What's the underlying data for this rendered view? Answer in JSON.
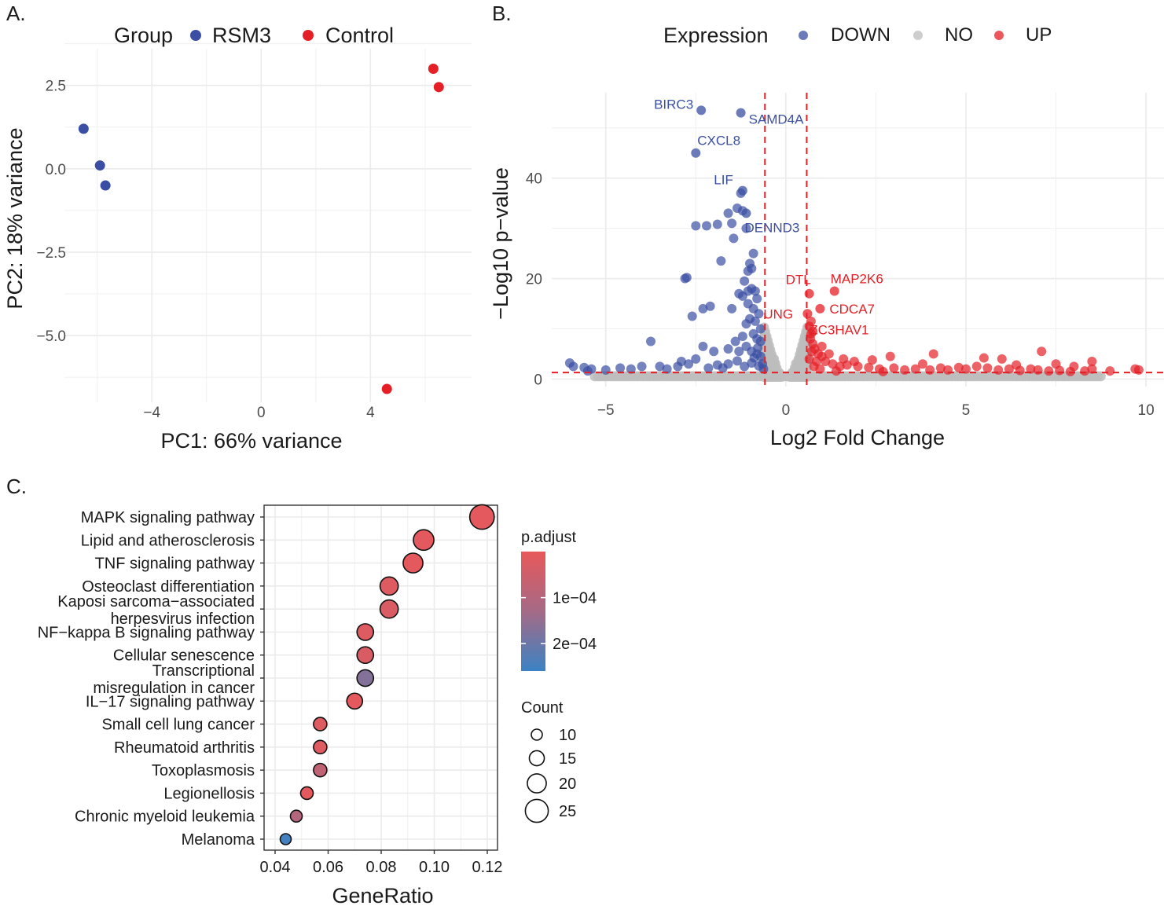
{
  "panels": {
    "A": {
      "letter": "A."
    },
    "B": {
      "letter": "B."
    },
    "C": {
      "letter": "C."
    }
  },
  "chart_data": [
    {
      "id": "pca",
      "type": "scatter",
      "xlabel": "PC1: 66% variance",
      "ylabel": "PC2: 18% variance",
      "xlim": [
        -7.2,
        7.7
      ],
      "ylim": [
        -7.0,
        3.6
      ],
      "x_ticks": [
        -4,
        0,
        4
      ],
      "x_tick_labels": [
        "−4",
        "0",
        "4"
      ],
      "y_ticks": [
        2.5,
        0.0,
        -2.5,
        -5.0
      ],
      "y_tick_labels": [
        "2.5",
        "0.0",
        "−2.5",
        "−5.0"
      ],
      "grid": true,
      "legend": {
        "title": "Group",
        "position": "top"
      },
      "series": [
        {
          "name": "RSM3",
          "color": "#3a4fa3",
          "points": [
            {
              "x": -6.5,
              "y": 1.2
            },
            {
              "x": -5.9,
              "y": 0.1
            },
            {
              "x": -5.7,
              "y": -0.5
            }
          ]
        },
        {
          "name": "Control",
          "color": "#e41f26",
          "points": [
            {
              "x": 6.3,
              "y": 3.0
            },
            {
              "x": 6.5,
              "y": 2.45
            },
            {
              "x": 4.6,
              "y": -6.6
            }
          ]
        }
      ]
    },
    {
      "id": "volcano",
      "type": "scatter",
      "xlabel": "Log2 Fold Change",
      "ylabel": "−Log10 p−value",
      "xlim": [
        -6.5,
        10.5
      ],
      "ylim": [
        -1.5,
        57
      ],
      "x_ticks": [
        -5,
        0,
        5,
        10
      ],
      "x_tick_labels": [
        "−5",
        "0",
        "5",
        "10"
      ],
      "y_ticks": [
        0,
        20,
        40
      ],
      "y_tick_labels": [
        "0",
        "20",
        "40"
      ],
      "grid": true,
      "thresholds": {
        "log2fc": [
          -0.58,
          0.58
        ],
        "neg_log10_p": 1.3,
        "color": "#e41f26"
      },
      "legend": {
        "title": "Expression",
        "position": "top",
        "items": [
          {
            "name": "DOWN",
            "color": "#3a4fa3"
          },
          {
            "name": "NO",
            "color": "#bdbdbd"
          },
          {
            "name": "UP",
            "color": "#e41f26"
          }
        ]
      },
      "labeled_genes": [
        {
          "gene": "BIRC3",
          "x": -2.35,
          "y": 53.5,
          "group": "DOWN"
        },
        {
          "gene": "SAMD4A",
          "x": -1.25,
          "y": 53.0,
          "group": "DOWN"
        },
        {
          "gene": "CXCL8",
          "x": -2.5,
          "y": 45.0,
          "group": "DOWN"
        },
        {
          "gene": "LIF",
          "x": -1.2,
          "y": 37.5,
          "group": "DOWN"
        },
        {
          "gene": "DENND3",
          "x": -1.1,
          "y": 33.0,
          "group": "DOWN"
        },
        {
          "gene": "DTL",
          "x": 0.65,
          "y": 17.0,
          "group": "UP"
        },
        {
          "gene": "MAP2K6",
          "x": 1.35,
          "y": 17.5,
          "group": "UP"
        },
        {
          "gene": "UNG",
          "x": 0.6,
          "y": 13.0,
          "group": "UP"
        },
        {
          "gene": "CDCA7",
          "x": 0.95,
          "y": 14.0,
          "group": "UP"
        },
        {
          "gene": "ZC3HAV1",
          "x": 0.75,
          "y": 9.5,
          "group": "UP"
        }
      ],
      "down_points": [
        {
          "x": -2.6,
          "y": 12.5
        },
        {
          "x": -2.3,
          "y": 14.0
        },
        {
          "x": -2.1,
          "y": 14.5
        },
        {
          "x": -1.5,
          "y": 14.0
        },
        {
          "x": -2.8,
          "y": 20.0
        },
        {
          "x": -2.75,
          "y": 20.2
        },
        {
          "x": -2.5,
          "y": 30.5
        },
        {
          "x": -2.2,
          "y": 30.5
        },
        {
          "x": -1.9,
          "y": 30.8
        },
        {
          "x": -1.6,
          "y": 33.0
        },
        {
          "x": -1.5,
          "y": 31.0
        },
        {
          "x": -1.45,
          "y": 28.0
        },
        {
          "x": -1.35,
          "y": 34.0
        },
        {
          "x": -1.2,
          "y": 33.5
        },
        {
          "x": -1.1,
          "y": 30.0
        },
        {
          "x": -1.25,
          "y": 37.0
        },
        {
          "x": -1.8,
          "y": 23.5
        },
        {
          "x": -1.05,
          "y": 21.5
        },
        {
          "x": -0.95,
          "y": 22.0
        },
        {
          "x": -0.9,
          "y": 25.0
        },
        {
          "x": -1.0,
          "y": 23.0
        },
        {
          "x": -1.15,
          "y": 19.5
        },
        {
          "x": -1.3,
          "y": 17.0
        },
        {
          "x": -1.2,
          "y": 16.5
        },
        {
          "x": -1.05,
          "y": 17.5
        },
        {
          "x": -0.95,
          "y": 18.0
        },
        {
          "x": -0.85,
          "y": 17.5
        },
        {
          "x": -0.8,
          "y": 16.0
        },
        {
          "x": -0.9,
          "y": 14.0
        },
        {
          "x": -0.75,
          "y": 13.0
        },
        {
          "x": -0.85,
          "y": 11.5
        },
        {
          "x": -1.0,
          "y": 12.0
        },
        {
          "x": -1.1,
          "y": 11.0
        },
        {
          "x": -0.9,
          "y": 9.0
        },
        {
          "x": -0.8,
          "y": 8.0
        },
        {
          "x": -0.7,
          "y": 7.5
        },
        {
          "x": -1.2,
          "y": 8.5
        },
        {
          "x": -1.4,
          "y": 7.5
        },
        {
          "x": -1.6,
          "y": 6.0
        },
        {
          "x": -1.3,
          "y": 5.5
        },
        {
          "x": -1.1,
          "y": 6.5
        },
        {
          "x": -0.95,
          "y": 5.5
        },
        {
          "x": -0.8,
          "y": 5.0
        },
        {
          "x": -0.7,
          "y": 4.5
        },
        {
          "x": -2.0,
          "y": 5.5
        },
        {
          "x": -2.3,
          "y": 6.5
        },
        {
          "x": -2.5,
          "y": 4.0
        },
        {
          "x": -2.7,
          "y": 3.0
        },
        {
          "x": -3.0,
          "y": 2.5
        },
        {
          "x": -3.3,
          "y": 2.0
        },
        {
          "x": -3.75,
          "y": 7.5
        },
        {
          "x": -4.0,
          "y": 2.5
        },
        {
          "x": -4.3,
          "y": 2.0
        },
        {
          "x": -4.6,
          "y": 2.2
        },
        {
          "x": -5.0,
          "y": 1.8
        },
        {
          "x": -5.4,
          "y": 2.0
        },
        {
          "x": -5.6,
          "y": 2.3
        },
        {
          "x": -5.9,
          "y": 2.5
        },
        {
          "x": -6.0,
          "y": 3.2
        },
        {
          "x": -5.5,
          "y": 1.6
        },
        {
          "x": -3.5,
          "y": 2.5
        },
        {
          "x": -2.9,
          "y": 3.5
        },
        {
          "x": -1.9,
          "y": 2.8
        },
        {
          "x": -1.6,
          "y": 3.0
        },
        {
          "x": -1.35,
          "y": 3.6
        },
        {
          "x": -1.15,
          "y": 2.5
        },
        {
          "x": -0.95,
          "y": 3.2
        },
        {
          "x": -0.75,
          "y": 2.6
        },
        {
          "x": -0.65,
          "y": 3.0
        },
        {
          "x": -0.7,
          "y": 10.0
        },
        {
          "x": -0.78,
          "y": 6.2
        },
        {
          "x": -0.88,
          "y": 4.2
        },
        {
          "x": -2.15,
          "y": 2.2
        },
        {
          "x": -1.75,
          "y": 2.2
        },
        {
          "x": -0.62,
          "y": 2.0
        },
        {
          "x": -1.05,
          "y": 15.0
        }
      ],
      "up_points": [
        {
          "x": 0.7,
          "y": 11.5
        },
        {
          "x": 0.65,
          "y": 10.5
        },
        {
          "x": 0.7,
          "y": 9.0
        },
        {
          "x": 0.68,
          "y": 8.0
        },
        {
          "x": 0.75,
          "y": 7.0
        },
        {
          "x": 0.8,
          "y": 6.0
        },
        {
          "x": 0.9,
          "y": 5.0
        },
        {
          "x": 1.0,
          "y": 4.5
        },
        {
          "x": 0.72,
          "y": 5.5
        },
        {
          "x": 0.65,
          "y": 4.0
        },
        {
          "x": 0.85,
          "y": 3.5
        },
        {
          "x": 1.1,
          "y": 3.5
        },
        {
          "x": 1.3,
          "y": 3.0
        },
        {
          "x": 1.5,
          "y": 2.5
        },
        {
          "x": 1.7,
          "y": 2.8
        },
        {
          "x": 2.0,
          "y": 2.5
        },
        {
          "x": 2.3,
          "y": 2.3
        },
        {
          "x": 2.6,
          "y": 2.0
        },
        {
          "x": 3.0,
          "y": 2.2
        },
        {
          "x": 3.3,
          "y": 1.8
        },
        {
          "x": 3.6,
          "y": 2.0
        },
        {
          "x": 4.0,
          "y": 1.8
        },
        {
          "x": 4.3,
          "y": 2.2
        },
        {
          "x": 4.5,
          "y": 1.8
        },
        {
          "x": 4.8,
          "y": 2.3
        },
        {
          "x": 5.0,
          "y": 2.0
        },
        {
          "x": 5.3,
          "y": 2.5
        },
        {
          "x": 5.6,
          "y": 2.2
        },
        {
          "x": 5.9,
          "y": 1.8
        },
        {
          "x": 6.2,
          "y": 2.0
        },
        {
          "x": 6.5,
          "y": 1.7
        },
        {
          "x": 6.8,
          "y": 2.0
        },
        {
          "x": 7.1,
          "y": 5.5
        },
        {
          "x": 7.0,
          "y": 1.8
        },
        {
          "x": 7.3,
          "y": 1.6
        },
        {
          "x": 7.6,
          "y": 1.7
        },
        {
          "x": 7.9,
          "y": 1.5
        },
        {
          "x": 8.3,
          "y": 1.6
        },
        {
          "x": 8.5,
          "y": 2.0
        },
        {
          "x": 9.0,
          "y": 1.6
        },
        {
          "x": 9.7,
          "y": 2.0
        },
        {
          "x": 9.8,
          "y": 1.8
        },
        {
          "x": 4.1,
          "y": 5.0
        },
        {
          "x": 5.5,
          "y": 4.2
        },
        {
          "x": 6.0,
          "y": 4.0
        },
        {
          "x": 2.9,
          "y": 4.5
        },
        {
          "x": 1.9,
          "y": 3.5
        },
        {
          "x": 1.0,
          "y": 6.5
        },
        {
          "x": 1.2,
          "y": 5.0
        },
        {
          "x": 8.0,
          "y": 2.5
        },
        {
          "x": 8.5,
          "y": 3.5
        },
        {
          "x": 7.5,
          "y": 3.0
        },
        {
          "x": 6.4,
          "y": 2.8
        },
        {
          "x": 3.8,
          "y": 3.0
        },
        {
          "x": 2.4,
          "y": 3.8
        },
        {
          "x": 1.6,
          "y": 4.0
        },
        {
          "x": 0.78,
          "y": 2.5
        },
        {
          "x": 0.95,
          "y": 2.0
        },
        {
          "x": 1.4,
          "y": 1.6
        },
        {
          "x": 2.7,
          "y": 1.5
        }
      ]
    },
    {
      "id": "enrichment",
      "type": "scatter",
      "xlabel": "GeneRatio",
      "xlim": [
        0.04,
        0.12
      ],
      "x_ticks": [
        0.04,
        0.06,
        0.08,
        0.1,
        0.12
      ],
      "x_tick_labels": [
        "0.04",
        "0.06",
        "0.08",
        "0.10",
        "0.12"
      ],
      "grid": true,
      "size_legend": {
        "title": "Count",
        "values": [
          10,
          15,
          20,
          25
        ],
        "labels": [
          "10",
          "15",
          "20",
          "25"
        ]
      },
      "color_legend": {
        "title": "p.adjust",
        "tick_labels": [
          "1e−04",
          "2e−04"
        ],
        "tick_values": [
          0.0001,
          0.0002
        ],
        "range": [
          1e-05,
          0.00027
        ],
        "low_color": "#e8585a",
        "high_color": "#3b82c4"
      },
      "categories": [
        {
          "name": [
            "MAPK signaling pathway"
          ],
          "gene_ratio": 0.118,
          "count": 27,
          "p_adjust": 2e-05
        },
        {
          "name": [
            "Lipid and atherosclerosis"
          ],
          "gene_ratio": 0.096,
          "count": 22,
          "p_adjust": 2e-05
        },
        {
          "name": [
            "TNF signaling pathway"
          ],
          "gene_ratio": 0.092,
          "count": 21,
          "p_adjust": 2e-05
        },
        {
          "name": [
            "Osteoclast differentiation"
          ],
          "gene_ratio": 0.083,
          "count": 19,
          "p_adjust": 3e-05
        },
        {
          "name": [
            "Kaposi sarcoma−associated",
            "herpesvirus infection"
          ],
          "gene_ratio": 0.083,
          "count": 19,
          "p_adjust": 4e-05
        },
        {
          "name": [
            "NF−kappa B signaling pathway"
          ],
          "gene_ratio": 0.074,
          "count": 17,
          "p_adjust": 3e-05
        },
        {
          "name": [
            "Cellular senescence"
          ],
          "gene_ratio": 0.074,
          "count": 17,
          "p_adjust": 4e-05
        },
        {
          "name": [
            "Transcriptional",
            "misregulation in cancer"
          ],
          "gene_ratio": 0.074,
          "count": 17,
          "p_adjust": 0.00018
        },
        {
          "name": [
            "IL−17 signaling pathway"
          ],
          "gene_ratio": 0.07,
          "count": 16,
          "p_adjust": 2e-05
        },
        {
          "name": [
            "Small cell lung cancer"
          ],
          "gene_ratio": 0.057,
          "count": 13,
          "p_adjust": 3e-05
        },
        {
          "name": [
            "Rheumatoid arthritis"
          ],
          "gene_ratio": 0.057,
          "count": 13,
          "p_adjust": 3e-05
        },
        {
          "name": [
            "Toxoplasmosis"
          ],
          "gene_ratio": 0.057,
          "count": 13,
          "p_adjust": 9e-05
        },
        {
          "name": [
            "Legionellosis"
          ],
          "gene_ratio": 0.052,
          "count": 12,
          "p_adjust": 2e-05
        },
        {
          "name": [
            "Chronic myeloid leukemia"
          ],
          "gene_ratio": 0.048,
          "count": 11,
          "p_adjust": 0.00011
        },
        {
          "name": [
            "Melanoma"
          ],
          "gene_ratio": 0.044,
          "count": 10,
          "p_adjust": 0.00026
        }
      ]
    }
  ]
}
